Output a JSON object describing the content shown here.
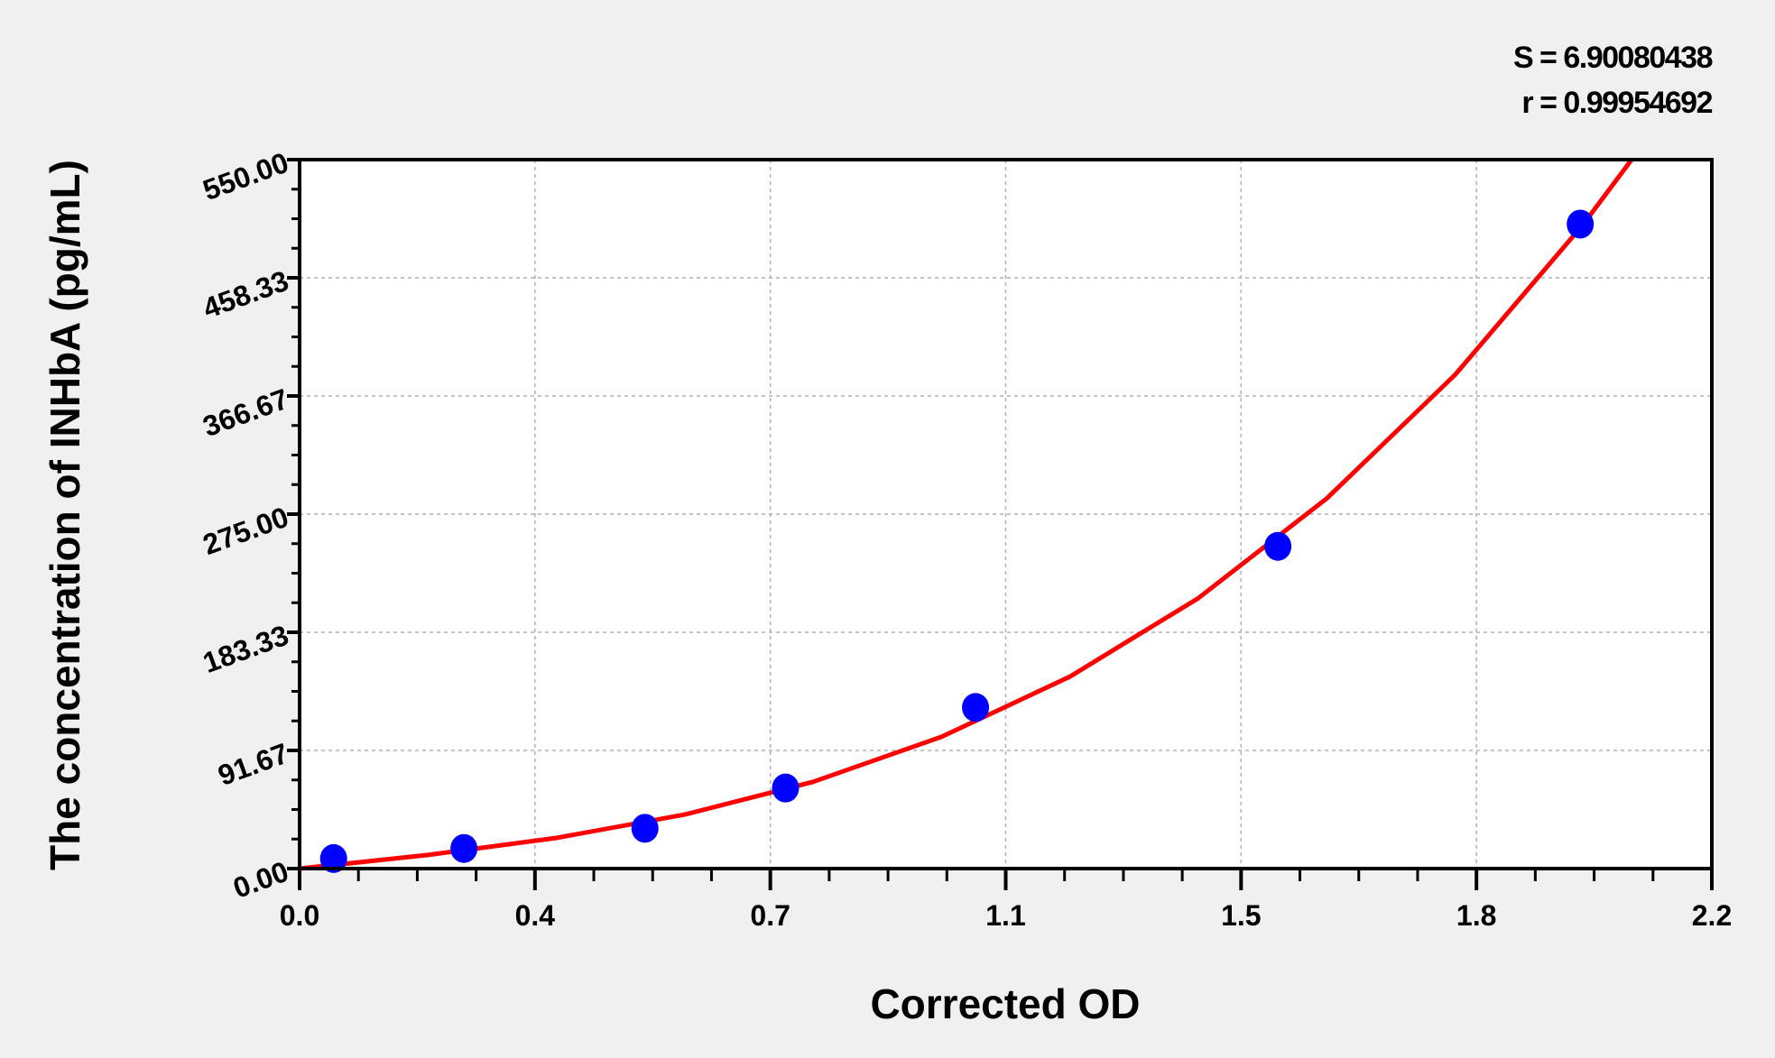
{
  "chart_data": {
    "type": "scatter",
    "title": "",
    "xlabel": "Corrected OD",
    "ylabel": "The concentration of INHbA (pg/mL)",
    "xlim": [
      0,
      2.2
    ],
    "ylim": [
      0,
      550
    ],
    "x_tick_labels": [
      "0.0",
      "0.4",
      "0.7",
      "1.1",
      "1.5",
      "1.8",
      "2.2"
    ],
    "y_tick_labels": [
      "0.00",
      "91.67",
      "183.33",
      "275.00",
      "366.67",
      "458.33",
      "550.00"
    ],
    "grid": true,
    "stats": [
      "S = 6.90080438",
      "r = 0.99954692"
    ],
    "colors": {
      "points": "#0000ff",
      "fit_line": "#ff0000",
      "background": "#f0f0f0",
      "plot_area": "#ffffff"
    },
    "points": [
      {
        "x": 0.053,
        "y": 7.8
      },
      {
        "x": 0.256,
        "y": 15.6
      },
      {
        "x": 0.538,
        "y": 31.25
      },
      {
        "x": 0.757,
        "y": 62.5
      },
      {
        "x": 1.053,
        "y": 125
      },
      {
        "x": 1.524,
        "y": 250
      },
      {
        "x": 1.995,
        "y": 500
      }
    ],
    "fit_curve": [
      {
        "x": 0,
        "y": 0
      },
      {
        "x": 0.2,
        "y": 10.6
      },
      {
        "x": 0.4,
        "y": 23.8
      },
      {
        "x": 0.6,
        "y": 41.9
      },
      {
        "x": 0.8,
        "y": 67.3
      },
      {
        "x": 1.0,
        "y": 102.2
      },
      {
        "x": 1.2,
        "y": 148.9
      },
      {
        "x": 1.4,
        "y": 209.8
      },
      {
        "x": 1.6,
        "y": 287.1
      },
      {
        "x": 1.8,
        "y": 383.1
      },
      {
        "x": 2.0,
        "y": 500
      },
      {
        "x": 2.075,
        "y": 550
      }
    ]
  }
}
